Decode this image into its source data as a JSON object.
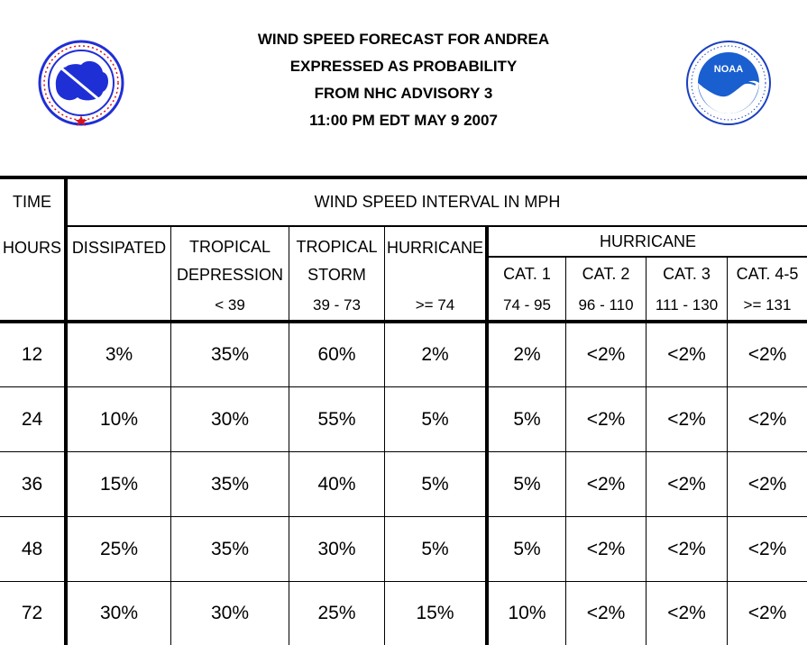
{
  "header": {
    "title_lines": [
      "WIND SPEED FORECAST FOR ANDREA",
      "EXPRESSED AS PROBABILITY",
      "FROM NHC ADVISORY   3",
      "11:00 PM EDT MAY 9 2007"
    ],
    "logos": {
      "left": "nws-logo",
      "right": "noaa-logo",
      "right_text": "NOAA"
    }
  },
  "table": {
    "time_label": "TIME",
    "interval_label": "WIND SPEED INTERVAL IN MPH",
    "hours_label": "HOURS",
    "dissipated_label": "DISSIPATED",
    "td_label_1": "TROPICAL",
    "td_label_2": "DEPRESSION",
    "td_range": "< 39",
    "ts_label_1": "TROPICAL",
    "ts_label_2": "STORM",
    "ts_range": "39 - 73",
    "hurricane_label": "HURRICANE",
    "hurricane_range": ">= 74",
    "hurricane_group_label": "HURRICANE",
    "categories": [
      {
        "label": "CAT. 1",
        "range": "74 - 95"
      },
      {
        "label": "CAT. 2",
        "range": "96 - 110"
      },
      {
        "label": "CAT. 3",
        "range": "111 - 130"
      },
      {
        "label": "CAT. 4-5",
        "range": ">= 131"
      }
    ],
    "rows": [
      {
        "hours": "12",
        "values": [
          "3%",
          "35%",
          "60%",
          "2%",
          "2%",
          "<2%",
          "<2%",
          "<2%"
        ]
      },
      {
        "hours": "24",
        "values": [
          "10%",
          "30%",
          "55%",
          "5%",
          "5%",
          "<2%",
          "<2%",
          "<2%"
        ]
      },
      {
        "hours": "36",
        "values": [
          "15%",
          "35%",
          "40%",
          "5%",
          "5%",
          "<2%",
          "<2%",
          "<2%"
        ]
      },
      {
        "hours": "48",
        "values": [
          "25%",
          "35%",
          "30%",
          "5%",
          "5%",
          "<2%",
          "<2%",
          "<2%"
        ]
      },
      {
        "hours": "72",
        "values": [
          "30%",
          "30%",
          "25%",
          "15%",
          "10%",
          "<2%",
          "<2%",
          "<2%"
        ]
      }
    ]
  },
  "colors": {
    "line": "#000000",
    "nws_blue": "#1f2fd6",
    "nws_red": "#d8121b",
    "noaa_blue": "#1a5fd0",
    "noaa_ring": "#1a3fc0"
  }
}
